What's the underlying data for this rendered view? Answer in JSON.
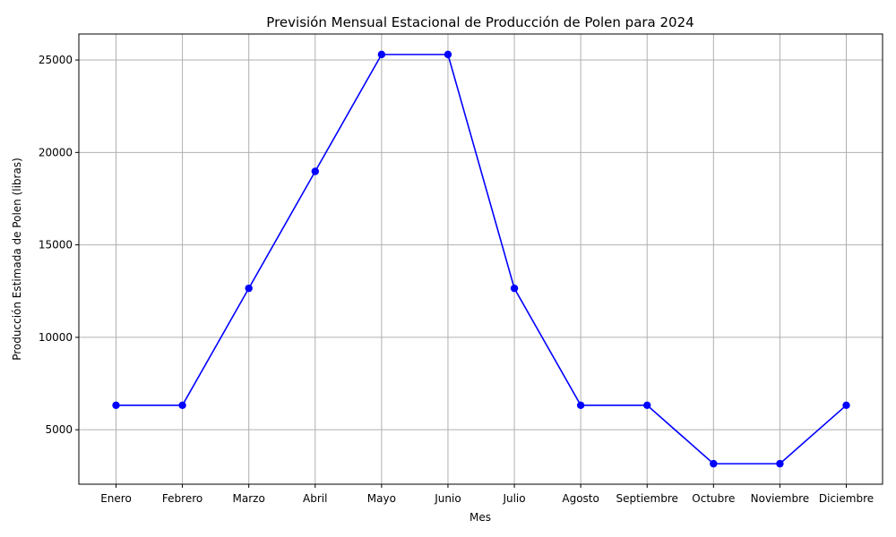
{
  "chart_data": {
    "type": "line",
    "title": "Previsión Mensual Estacional de Producción de Polen para 2024",
    "xlabel": "Mes",
    "ylabel": "Producción Estimada de Polen (libras)",
    "categories": [
      "Enero",
      "Febrero",
      "Marzo",
      "Abril",
      "Mayo",
      "Junio",
      "Julio",
      "Agosto",
      "Septiembre",
      "Octubre",
      "Noviembre",
      "Diciembre"
    ],
    "series": [
      {
        "values": [
          6325,
          6325,
          12650,
          18975,
          25300,
          25300,
          12650,
          6325,
          6325,
          3162.5,
          3162.5,
          6325
        ]
      }
    ],
    "y_ticks": [
      5000,
      10000,
      15000,
      20000,
      25000
    ],
    "ylim": [
      2055,
      26407
    ],
    "grid": true,
    "colors": {
      "line": "#0000ff",
      "grid": "#b0b0b0",
      "axes": "#000000"
    }
  }
}
